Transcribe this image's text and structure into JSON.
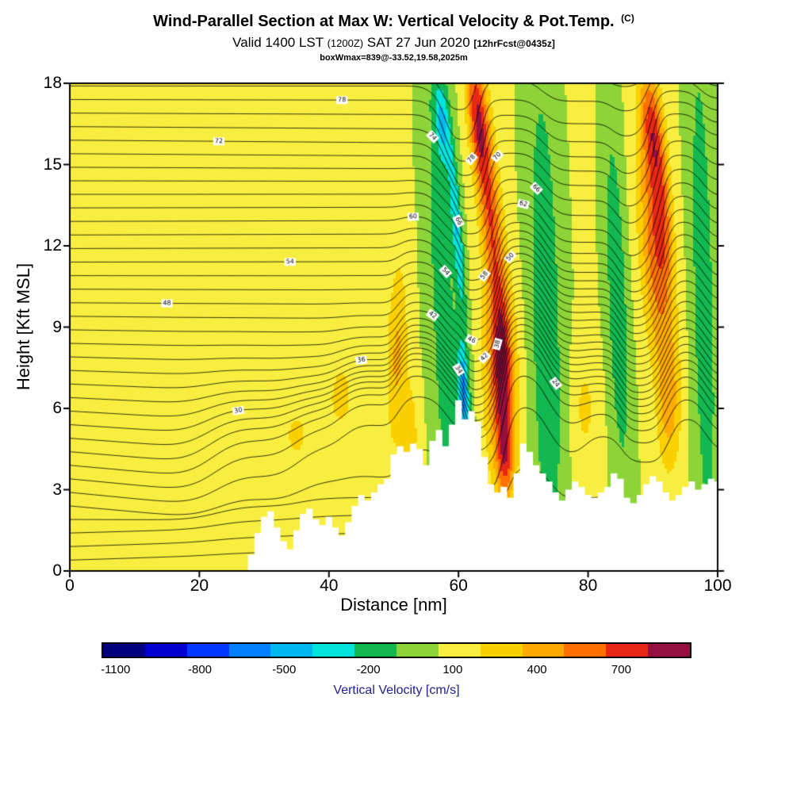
{
  "header": {
    "title": "Wind-Parallel Section at Max W: Vertical Velocity & Pot.Temp.",
    "title_suffix": "(C)",
    "valid_prefix": "Valid 1400 LST",
    "valid_zulu": "(1200Z)",
    "valid_date": "SAT 27 Jun 2020",
    "forecast_tag": "[12hrFcst@0435z]",
    "box_annotation": "boxWmax=839@-33.52,19.58,2025m"
  },
  "chart_data": {
    "type": "heatmap",
    "title": "Wind-Parallel Section at Max W: Vertical Velocity & Pot.Temp. (C)",
    "xlabel": "Distance [nm]",
    "ylabel": "Height [Kft MSL]",
    "xlim": [
      0,
      100
    ],
    "ylim": [
      0,
      18
    ],
    "xticks": [
      0,
      20,
      40,
      60,
      80,
      100
    ],
    "yticks": [
      0,
      3,
      6,
      9,
      12,
      15,
      18
    ],
    "fill_field": "vertical velocity filled contours",
    "line_field": "potential temperature line contours",
    "background_w": 60,
    "colorbar": {
      "label": "Vertical Velocity [cm/s]",
      "label_color": "#202090",
      "value_min": -1150,
      "value_max": 950,
      "step": 150,
      "tick_values": [
        -1100,
        -800,
        -500,
        -200,
        100,
        400,
        700
      ],
      "colors": [
        "#000080",
        "#0000d2",
        "#0038ff",
        "#0080ff",
        "#00b8f0",
        "#00e4dc",
        "#14b850",
        "#8cd438",
        "#f8ee40",
        "#fad000",
        "#ffaa00",
        "#ff7000",
        "#e82814",
        "#941040"
      ]
    },
    "plumes": [
      {
        "x": 57.5,
        "z": 10,
        "sx": 2.2,
        "sz": 12,
        "amp": -230,
        "tilt": -0.15
      },
      {
        "x": 60.8,
        "z": 6.5,
        "sx": 1.1,
        "sz": 2.2,
        "amp": -360,
        "tilt": -0.2
      },
      {
        "x": 60.8,
        "z": 6.5,
        "sx": 0.55,
        "sz": 1.4,
        "amp": -300,
        "tilt": -0.2
      },
      {
        "x": 59.8,
        "z": 12.5,
        "sx": 0.8,
        "sz": 3.5,
        "amp": -420,
        "tilt": -0.3
      },
      {
        "x": 57.5,
        "z": 16.5,
        "sx": 1.0,
        "sz": 1.5,
        "amp": -380,
        "tilt": -0.3
      },
      {
        "x": 66.5,
        "z": 7,
        "sx": 2.4,
        "sz": 3.8,
        "amp": 560,
        "tilt": -0.1
      },
      {
        "x": 66.8,
        "z": 7.5,
        "sx": 1.2,
        "sz": 2.4,
        "amp": 300,
        "tilt": -0.1
      },
      {
        "x": 67.2,
        "z": 4.2,
        "sx": 1.3,
        "sz": 1.6,
        "amp": 420,
        "tilt": 0
      },
      {
        "x": 64.8,
        "z": 13.5,
        "sx": 1.7,
        "sz": 4.5,
        "amp": 560,
        "tilt": -0.35
      },
      {
        "x": 62.8,
        "z": 16.8,
        "sx": 1.4,
        "sz": 2.2,
        "amp": 520,
        "tilt": -0.3
      },
      {
        "x": 73.5,
        "z": 9,
        "sx": 2.4,
        "sz": 10,
        "amp": -300,
        "tilt": -0.1
      },
      {
        "x": 79.5,
        "z": 6,
        "sx": 2.0,
        "sz": 2.2,
        "amp": 170,
        "tilt": 0
      },
      {
        "x": 84.5,
        "z": 10,
        "sx": 1.6,
        "sz": 7,
        "amp": -290,
        "tilt": -0.15
      },
      {
        "x": 90.5,
        "z": 12,
        "sx": 2.4,
        "sz": 4.5,
        "amp": 560,
        "tilt": -0.25
      },
      {
        "x": 91.5,
        "z": 13.5,
        "sx": 1.2,
        "sz": 2.5,
        "amp": 280,
        "tilt": -0.25
      },
      {
        "x": 89.8,
        "z": 16.5,
        "sx": 1.6,
        "sz": 2.0,
        "amp": 480,
        "tilt": -0.3
      },
      {
        "x": 92.5,
        "z": 6,
        "sx": 1.8,
        "sz": 2.5,
        "amp": 300,
        "tilt": 0
      },
      {
        "x": 97.8,
        "z": 10,
        "sx": 1.9,
        "sz": 11,
        "amp": -260,
        "tilt": -0.1
      },
      {
        "x": 50.5,
        "z": 8,
        "sx": 1.6,
        "sz": 3.5,
        "amp": 310,
        "tilt": 0.1
      },
      {
        "x": 52.5,
        "z": 5,
        "sx": 1.4,
        "sz": 2.0,
        "amp": 220,
        "tilt": 0
      },
      {
        "x": 22,
        "z": 4.5,
        "sx": 5,
        "sz": 2.2,
        "amp": 140,
        "tilt": 0
      },
      {
        "x": 35,
        "z": 5,
        "sx": 4,
        "sz": 2.0,
        "amp": 150,
        "tilt": 0
      },
      {
        "x": 42,
        "z": 6.5,
        "sx": 3,
        "sz": 2.0,
        "amp": 160,
        "tilt": 0
      }
    ],
    "terrain_profile": [
      [
        27,
        0
      ],
      [
        28,
        0.6
      ],
      [
        29,
        1.4
      ],
      [
        30,
        2.0
      ],
      [
        31,
        2.2
      ],
      [
        32,
        1.6
      ],
      [
        33,
        1.1
      ],
      [
        34,
        0.8
      ],
      [
        35,
        1.5
      ],
      [
        36,
        2.1
      ],
      [
        37,
        2.3
      ],
      [
        38,
        1.9
      ],
      [
        39,
        1.7
      ],
      [
        40,
        2.0
      ],
      [
        41,
        1.6
      ],
      [
        42,
        1.3
      ],
      [
        43,
        1.8
      ],
      [
        44,
        2.4
      ],
      [
        45,
        2.8
      ],
      [
        46,
        2.6
      ],
      [
        47,
        2.9
      ],
      [
        48,
        3.2
      ],
      [
        49,
        3.4
      ],
      [
        50,
        4.3
      ],
      [
        51,
        4.6
      ],
      [
        52,
        4.4
      ],
      [
        53,
        4.7
      ],
      [
        54,
        4.5
      ],
      [
        55,
        3.9
      ],
      [
        56,
        4.8
      ],
      [
        57,
        5.2
      ],
      [
        58,
        4.6
      ],
      [
        59,
        5.4
      ],
      [
        60,
        6.3
      ],
      [
        61,
        5.6
      ],
      [
        62,
        5.9
      ],
      [
        63,
        5.5
      ],
      [
        64,
        4.2
      ],
      [
        65,
        3.2
      ],
      [
        66,
        2.9
      ],
      [
        67,
        3.1
      ],
      [
        68,
        2.7
      ],
      [
        69,
        3.6
      ],
      [
        70,
        4.7
      ],
      [
        71,
        4.4
      ],
      [
        72,
        3.9
      ],
      [
        73,
        3.6
      ],
      [
        74,
        3.3
      ],
      [
        75,
        2.9
      ],
      [
        76,
        2.6
      ],
      [
        77,
        3.0
      ],
      [
        78,
        3.3
      ],
      [
        79,
        3.1
      ],
      [
        80,
        2.8
      ],
      [
        81,
        2.7
      ],
      [
        82,
        2.9
      ],
      [
        83,
        3.1
      ],
      [
        84,
        3.6
      ],
      [
        85,
        3.4
      ],
      [
        86,
        2.7
      ],
      [
        87,
        2.5
      ],
      [
        88,
        2.8
      ],
      [
        89,
        3.2
      ],
      [
        90,
        3.5
      ],
      [
        91,
        3.3
      ],
      [
        92,
        2.9
      ],
      [
        93,
        2.6
      ],
      [
        94,
        2.8
      ],
      [
        95,
        3.1
      ],
      [
        96,
        3.3
      ],
      [
        97,
        3.0
      ],
      [
        98,
        3.2
      ],
      [
        99,
        3.4
      ],
      [
        100,
        3.3
      ]
    ],
    "isentropes": {
      "z_start": 0.4,
      "z_step": 0.5,
      "count": 44,
      "label_start": 10,
      "label_step": 2,
      "displacement_k": 0.0013,
      "detrend": 0.5,
      "color": "#000000",
      "width": 0.8
    }
  }
}
